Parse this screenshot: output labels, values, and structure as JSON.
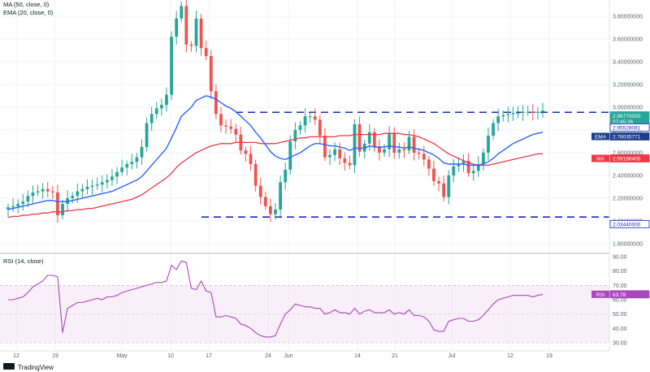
{
  "legend": {
    "ma": "MA (50, close, 0)",
    "ema": "EMA (20, close, 0)",
    "rsi": "RSI (14, close)"
  },
  "branding": {
    "name": "TradingView"
  },
  "tags": {
    "price": {
      "value": "2.96770000",
      "sub": "07:45:26"
    },
    "ema": {
      "label": "EMA",
      "value": "2.78035771"
    },
    "ma": {
      "label": "MA",
      "value": "2.59186400"
    },
    "resistance": {
      "value": "2.95528081"
    },
    "support": {
      "value": "2.03440000"
    },
    "rsi": {
      "label": "RSI",
      "value": "63.78"
    }
  },
  "colors": {
    "up": "#26a69a",
    "down": "#ef5350",
    "ema": "#2962ff",
    "ma": "#f23645",
    "rsi": "#ab47bc",
    "levels": "#1c2bb5"
  },
  "chart_data": [
    {
      "type": "candlestick",
      "title": "",
      "y_axis_ticks": [
        "3.80000000",
        "3.60000000",
        "3.40000000",
        "3.20000000",
        "3.00000000",
        "2.80000000",
        "2.60000000",
        "2.40000000",
        "2.20000000",
        "2.00000000",
        "1.80000000"
      ],
      "x_axis_ticks": [
        "12",
        "19",
        "May",
        "10",
        "17",
        "24",
        "Jun",
        "14",
        "21",
        "Jul",
        "12",
        "19"
      ],
      "ylim": [
        1.8,
        3.9
      ],
      "horizontal_levels": [
        2.95528081,
        2.0344
      ],
      "close": [
        2.12,
        2.13,
        2.15,
        2.17,
        2.22,
        2.25,
        2.26,
        2.28,
        2.26,
        2.25,
        2.05,
        2.15,
        2.2,
        2.22,
        2.26,
        2.28,
        2.3,
        2.31,
        2.32,
        2.34,
        2.36,
        2.39,
        2.43,
        2.47,
        2.5,
        2.52,
        2.56,
        2.65,
        2.86,
        2.94,
        2.99,
        3.02,
        3.11,
        3.62,
        3.78,
        3.89,
        3.55,
        3.54,
        3.78,
        3.52,
        3.45,
        3.14,
        2.94,
        2.84,
        2.83,
        2.81,
        2.76,
        2.62,
        2.59,
        2.5,
        2.31,
        2.21,
        2.13,
        2.06,
        2.1,
        2.34,
        2.45,
        2.7,
        2.8,
        2.84,
        2.92,
        2.92,
        2.89,
        2.75,
        2.56,
        2.58,
        2.63,
        2.55,
        2.51,
        2.49,
        2.85,
        2.61,
        2.68,
        2.78,
        2.65,
        2.6,
        2.63,
        2.77,
        2.6,
        2.63,
        2.62,
        2.74,
        2.6,
        2.59,
        2.54,
        2.46,
        2.35,
        2.33,
        2.21,
        2.4,
        2.48,
        2.5,
        2.53,
        2.42,
        2.44,
        2.5,
        2.6,
        2.75,
        2.86,
        2.92,
        2.93,
        2.94,
        2.95,
        2.95,
        2.96,
        2.96,
        2.95,
        2.96,
        2.97
      ],
      "ema20": [
        2.1,
        2.11,
        2.12,
        2.13,
        2.14,
        2.15,
        2.16,
        2.17,
        2.18,
        2.18,
        2.17,
        2.17,
        2.17,
        2.18,
        2.19,
        2.2,
        2.21,
        2.22,
        2.23,
        2.24,
        2.25,
        2.26,
        2.28,
        2.3,
        2.32,
        2.34,
        2.36,
        2.39,
        2.44,
        2.49,
        2.54,
        2.59,
        2.64,
        2.73,
        2.82,
        2.92,
        2.96,
        3.0,
        3.06,
        3.08,
        3.1,
        3.09,
        3.07,
        3.04,
        3.01,
        2.99,
        2.96,
        2.92,
        2.88,
        2.84,
        2.78,
        2.73,
        2.67,
        2.61,
        2.57,
        2.55,
        2.54,
        2.56,
        2.58,
        2.6,
        2.63,
        2.66,
        2.68,
        2.68,
        2.67,
        2.66,
        2.66,
        2.65,
        2.64,
        2.62,
        2.64,
        2.64,
        2.64,
        2.66,
        2.65,
        2.65,
        2.65,
        2.66,
        2.65,
        2.65,
        2.64,
        2.65,
        2.64,
        2.63,
        2.62,
        2.6,
        2.58,
        2.55,
        2.51,
        2.5,
        2.5,
        2.5,
        2.5,
        2.49,
        2.49,
        2.49,
        2.5,
        2.52,
        2.55,
        2.59,
        2.62,
        2.65,
        2.68,
        2.7,
        2.72,
        2.74,
        2.76,
        2.77,
        2.78
      ],
      "ma50": [
        2.03,
        2.04,
        2.04,
        2.05,
        2.05,
        2.06,
        2.06,
        2.07,
        2.07,
        2.08,
        2.08,
        2.08,
        2.09,
        2.09,
        2.1,
        2.1,
        2.11,
        2.11,
        2.12,
        2.13,
        2.14,
        2.15,
        2.16,
        2.17,
        2.18,
        2.19,
        2.21,
        2.23,
        2.26,
        2.29,
        2.32,
        2.35,
        2.38,
        2.42,
        2.47,
        2.51,
        2.54,
        2.57,
        2.6,
        2.62,
        2.64,
        2.66,
        2.67,
        2.68,
        2.68,
        2.68,
        2.69,
        2.69,
        2.69,
        2.69,
        2.69,
        2.68,
        2.68,
        2.68,
        2.68,
        2.69,
        2.7,
        2.71,
        2.72,
        2.73,
        2.73,
        2.74,
        2.74,
        2.74,
        2.74,
        2.74,
        2.74,
        2.75,
        2.75,
        2.75,
        2.76,
        2.76,
        2.76,
        2.76,
        2.76,
        2.76,
        2.77,
        2.77,
        2.77,
        2.77,
        2.76,
        2.76,
        2.75,
        2.74,
        2.72,
        2.7,
        2.68,
        2.65,
        2.62,
        2.59,
        2.57,
        2.55,
        2.53,
        2.51,
        2.5,
        2.49,
        2.49,
        2.49,
        2.5,
        2.51,
        2.52,
        2.53,
        2.54,
        2.55,
        2.56,
        2.57,
        2.58,
        2.59,
        2.59
      ],
      "rsi_ylim": [
        30,
        90
      ],
      "rsi_ticks": [
        "90.00",
        "80.00",
        "70.00",
        "60.00",
        "50.00",
        "40.00",
        "30.00"
      ],
      "rsi_bands": [
        70,
        30
      ],
      "rsi": [
        60,
        60,
        61,
        62,
        65,
        69,
        71,
        73,
        77,
        77,
        76,
        37,
        54,
        56,
        58,
        58,
        59,
        60,
        61,
        60,
        62,
        62,
        63,
        65,
        66,
        67,
        68,
        69,
        70,
        71,
        72,
        72,
        73,
        84,
        81,
        87,
        86,
        68,
        67,
        73,
        66,
        65,
        48,
        48,
        49,
        48,
        47,
        43,
        42,
        40,
        37,
        35,
        34,
        34,
        35,
        43,
        50,
        53,
        57,
        56,
        55,
        55,
        54,
        54,
        50,
        51,
        53,
        51,
        51,
        50,
        54,
        50,
        52,
        53,
        51,
        51,
        51,
        53,
        50,
        51,
        50,
        53,
        49,
        49,
        48,
        45,
        39,
        38,
        38,
        45,
        46,
        47,
        47,
        45,
        45,
        46,
        49,
        53,
        57,
        60,
        61,
        62,
        63,
        63,
        63,
        63,
        62,
        63,
        63.78
      ]
    }
  ]
}
